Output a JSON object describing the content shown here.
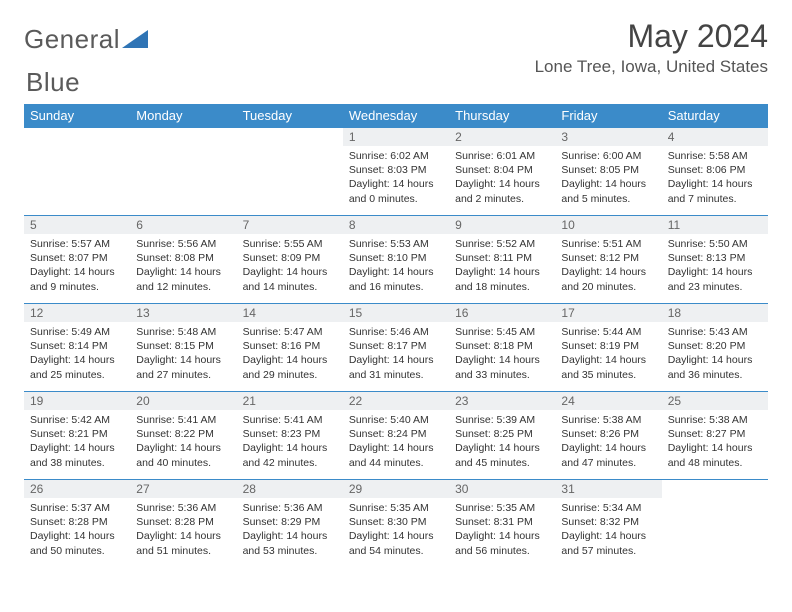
{
  "logo": {
    "word1": "General",
    "word2": "Blue"
  },
  "title": "May 2024",
  "location": "Lone Tree, Iowa, United States",
  "colors": {
    "header_bg": "#3b8bc9",
    "header_text": "#ffffff",
    "daynum_bg": "#eef0f2",
    "border": "#3b8bc9",
    "logo_gray": "#5a5a5a",
    "logo_blue": "#2f74b5"
  },
  "weekdays": [
    "Sunday",
    "Monday",
    "Tuesday",
    "Wednesday",
    "Thursday",
    "Friday",
    "Saturday"
  ],
  "weeks": [
    [
      null,
      null,
      null,
      {
        "d": "1",
        "sr": "6:02 AM",
        "ss": "8:03 PM",
        "dl": "14 hours and 0 minutes."
      },
      {
        "d": "2",
        "sr": "6:01 AM",
        "ss": "8:04 PM",
        "dl": "14 hours and 2 minutes."
      },
      {
        "d": "3",
        "sr": "6:00 AM",
        "ss": "8:05 PM",
        "dl": "14 hours and 5 minutes."
      },
      {
        "d": "4",
        "sr": "5:58 AM",
        "ss": "8:06 PM",
        "dl": "14 hours and 7 minutes."
      }
    ],
    [
      {
        "d": "5",
        "sr": "5:57 AM",
        "ss": "8:07 PM",
        "dl": "14 hours and 9 minutes."
      },
      {
        "d": "6",
        "sr": "5:56 AM",
        "ss": "8:08 PM",
        "dl": "14 hours and 12 minutes."
      },
      {
        "d": "7",
        "sr": "5:55 AM",
        "ss": "8:09 PM",
        "dl": "14 hours and 14 minutes."
      },
      {
        "d": "8",
        "sr": "5:53 AM",
        "ss": "8:10 PM",
        "dl": "14 hours and 16 minutes."
      },
      {
        "d": "9",
        "sr": "5:52 AM",
        "ss": "8:11 PM",
        "dl": "14 hours and 18 minutes."
      },
      {
        "d": "10",
        "sr": "5:51 AM",
        "ss": "8:12 PM",
        "dl": "14 hours and 20 minutes."
      },
      {
        "d": "11",
        "sr": "5:50 AM",
        "ss": "8:13 PM",
        "dl": "14 hours and 23 minutes."
      }
    ],
    [
      {
        "d": "12",
        "sr": "5:49 AM",
        "ss": "8:14 PM",
        "dl": "14 hours and 25 minutes."
      },
      {
        "d": "13",
        "sr": "5:48 AM",
        "ss": "8:15 PM",
        "dl": "14 hours and 27 minutes."
      },
      {
        "d": "14",
        "sr": "5:47 AM",
        "ss": "8:16 PM",
        "dl": "14 hours and 29 minutes."
      },
      {
        "d": "15",
        "sr": "5:46 AM",
        "ss": "8:17 PM",
        "dl": "14 hours and 31 minutes."
      },
      {
        "d": "16",
        "sr": "5:45 AM",
        "ss": "8:18 PM",
        "dl": "14 hours and 33 minutes."
      },
      {
        "d": "17",
        "sr": "5:44 AM",
        "ss": "8:19 PM",
        "dl": "14 hours and 35 minutes."
      },
      {
        "d": "18",
        "sr": "5:43 AM",
        "ss": "8:20 PM",
        "dl": "14 hours and 36 minutes."
      }
    ],
    [
      {
        "d": "19",
        "sr": "5:42 AM",
        "ss": "8:21 PM",
        "dl": "14 hours and 38 minutes."
      },
      {
        "d": "20",
        "sr": "5:41 AM",
        "ss": "8:22 PM",
        "dl": "14 hours and 40 minutes."
      },
      {
        "d": "21",
        "sr": "5:41 AM",
        "ss": "8:23 PM",
        "dl": "14 hours and 42 minutes."
      },
      {
        "d": "22",
        "sr": "5:40 AM",
        "ss": "8:24 PM",
        "dl": "14 hours and 44 minutes."
      },
      {
        "d": "23",
        "sr": "5:39 AM",
        "ss": "8:25 PM",
        "dl": "14 hours and 45 minutes."
      },
      {
        "d": "24",
        "sr": "5:38 AM",
        "ss": "8:26 PM",
        "dl": "14 hours and 47 minutes."
      },
      {
        "d": "25",
        "sr": "5:38 AM",
        "ss": "8:27 PM",
        "dl": "14 hours and 48 minutes."
      }
    ],
    [
      {
        "d": "26",
        "sr": "5:37 AM",
        "ss": "8:28 PM",
        "dl": "14 hours and 50 minutes."
      },
      {
        "d": "27",
        "sr": "5:36 AM",
        "ss": "8:28 PM",
        "dl": "14 hours and 51 minutes."
      },
      {
        "d": "28",
        "sr": "5:36 AM",
        "ss": "8:29 PM",
        "dl": "14 hours and 53 minutes."
      },
      {
        "d": "29",
        "sr": "5:35 AM",
        "ss": "8:30 PM",
        "dl": "14 hours and 54 minutes."
      },
      {
        "d": "30",
        "sr": "5:35 AM",
        "ss": "8:31 PM",
        "dl": "14 hours and 56 minutes."
      },
      {
        "d": "31",
        "sr": "5:34 AM",
        "ss": "8:32 PM",
        "dl": "14 hours and 57 minutes."
      },
      null
    ]
  ],
  "labels": {
    "sunrise": "Sunrise:",
    "sunset": "Sunset:",
    "daylight": "Daylight:"
  }
}
